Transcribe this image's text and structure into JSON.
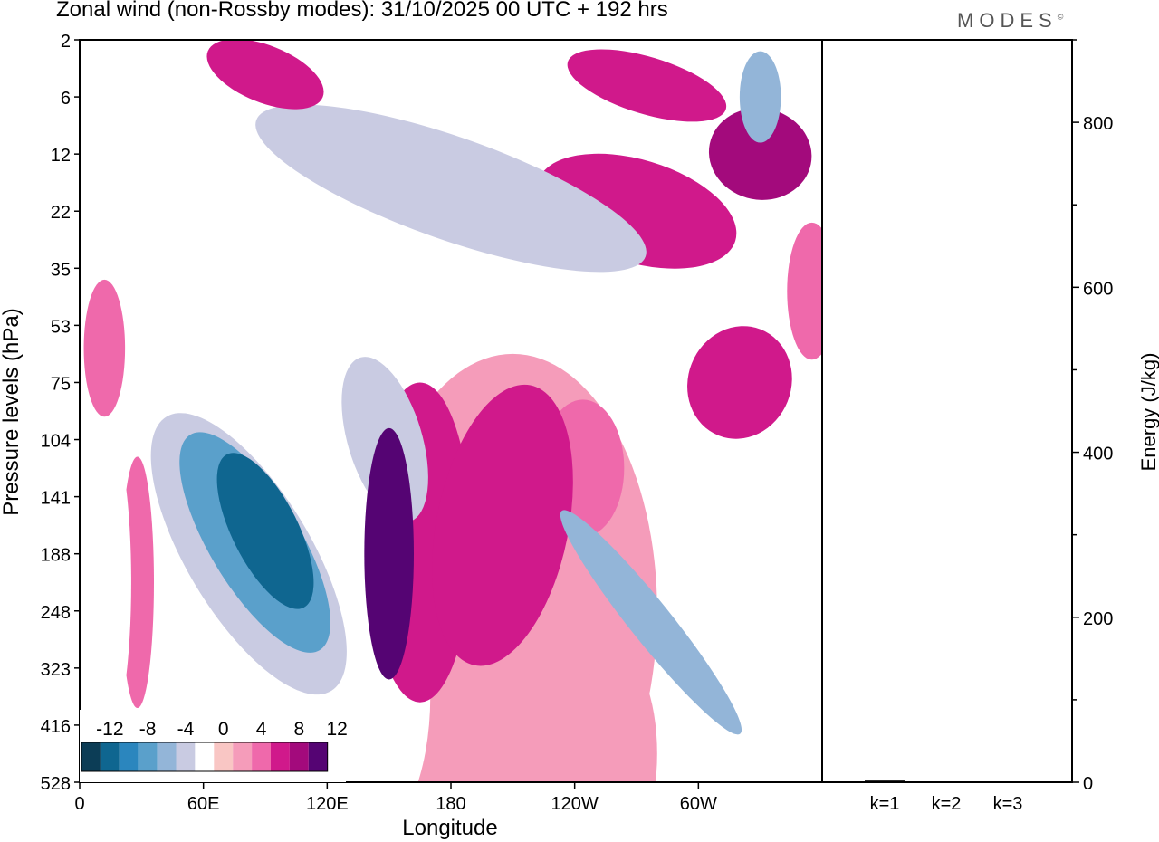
{
  "header": {
    "title": "Zonal wind (non-Rossby modes):  31/10/2025  00 UTC  + 192 hrs",
    "brand": "MODES",
    "brand_mark": "©"
  },
  "chart_data": [
    {
      "type": "heatmap",
      "title": "Zonal wind (non-Rossby modes):  31/10/2025  00 UTC  + 192 hrs",
      "xlabel": "Longitude",
      "ylabel": "Pressure levels (hPa)",
      "x_ticks": [
        "0",
        "60E",
        "120E",
        "180",
        "120W",
        "60W"
      ],
      "x_tick_degrees": [
        0,
        60,
        120,
        180,
        240,
        300
      ],
      "xlim": [
        0,
        360
      ],
      "y_ticks": [
        "2",
        "6",
        "12",
        "22",
        "35",
        "53",
        "75",
        "104",
        "141",
        "188",
        "248",
        "323",
        "416",
        "528"
      ],
      "colorbar": {
        "labels": [
          "-12",
          "-8",
          "-4",
          "0",
          "4",
          "8",
          "12"
        ],
        "levels": [
          -14,
          -12,
          -10,
          -8,
          -6,
          -4,
          -2,
          2,
          4,
          6,
          8,
          10,
          12,
          14
        ],
        "colors": [
          "#0c3d56",
          "#0f6690",
          "#2b86be",
          "#5aa0cb",
          "#93b5d8",
          "#c9cbe2",
          "#ffffff",
          "#f9c6c4",
          "#f59cba",
          "#ef69ab",
          "#d0198b",
          "#a30a7c",
          "#550473"
        ]
      },
      "regions": [
        {
          "name": "jet-neg-core",
          "lon": 90,
          "level": 8.6,
          "rx": 16,
          "ry": 1.5,
          "value": -14,
          "tilt": -0.5
        },
        {
          "name": "jet-neg-outer",
          "lon": 82,
          "level": 9.0,
          "rx": 30,
          "ry": 2.8,
          "value": -6,
          "tilt": -0.6
        },
        {
          "name": "jet-neg-mid",
          "lon": 85,
          "level": 8.8,
          "rx": 22,
          "ry": 2.2,
          "value": -10,
          "tilt": -0.6
        },
        {
          "name": "jet-neg-halo",
          "lon": 78,
          "level": 9.4,
          "rx": 38,
          "ry": 3.6,
          "value": -4,
          "tilt": -0.6
        },
        {
          "name": "pos-block-a",
          "lon": 150,
          "level": 9.0,
          "rx": 12,
          "ry": 2.2,
          "value": 10,
          "tilt": 0
        },
        {
          "name": "pos-block-b",
          "lon": 165,
          "level": 8.8,
          "rx": 25,
          "ry": 2.8,
          "value": 6,
          "tilt": 0
        },
        {
          "name": "pos-block-c",
          "lon": 205,
          "level": 8.5,
          "rx": 32,
          "ry": 2.5,
          "value": 6,
          "tilt": 0.2
        },
        {
          "name": "pos-broad",
          "lon": 210,
          "level": 10.0,
          "rx": 70,
          "ry": 4.5,
          "value": 2,
          "tilt": 0
        },
        {
          "name": "pos-upper-c",
          "lon": 244,
          "level": 7.5,
          "rx": 20,
          "ry": 1.2,
          "value": 4,
          "tilt": 0
        },
        {
          "name": "neg-mid-a",
          "lon": 148,
          "level": 7.0,
          "rx": 18,
          "ry": 1.5,
          "value": -6,
          "tilt": -0.3
        },
        {
          "name": "neg-250w",
          "lon": 277,
          "level": 10.2,
          "rx": 10,
          "ry": 2.5,
          "value": -8,
          "tilt": -0.8
        },
        {
          "name": "neg-east",
          "lon": 330,
          "level": 10.0,
          "rx": 25,
          "ry": 4.0,
          "value": -4,
          "tilt": 0
        },
        {
          "name": "neg-low",
          "lon": 140,
          "level": 11.5,
          "rx": 30,
          "ry": 2.5,
          "value": -4,
          "tilt": 0
        },
        {
          "name": "pos-east-mid",
          "lon": 320,
          "level": 6.0,
          "rx": 25,
          "ry": 1.0,
          "value": 6,
          "tilt": 0.4
        },
        {
          "name": "pos-far-east",
          "lon": 355,
          "level": 4.4,
          "rx": 12,
          "ry": 1.2,
          "value": 4,
          "tilt": 0
        },
        {
          "name": "pos-west-mid",
          "lon": 12,
          "level": 5.4,
          "rx": 10,
          "ry": 1.2,
          "value": 4,
          "tilt": 0
        },
        {
          "name": "pos-west-low",
          "lon": 28,
          "level": 9.5,
          "rx": 8,
          "ry": 2.2,
          "value": 4,
          "tilt": 0
        },
        {
          "name": "neg-west-low",
          "lon": 15,
          "level": 9.5,
          "rx": 10,
          "ry": 2.5,
          "value": -4,
          "tilt": 0
        },
        {
          "name": "pos-upper-jet",
          "lon": 270,
          "level": 3.0,
          "rx": 50,
          "ry": 0.9,
          "value": 6,
          "tilt": 0.3
        },
        {
          "name": "pos-upper-east",
          "lon": 330,
          "level": 2.0,
          "rx": 25,
          "ry": 0.8,
          "value": 8,
          "tilt": 0.2
        },
        {
          "name": "neg-upper-band",
          "lon": 180,
          "level": 2.6,
          "rx": 100,
          "ry": 0.9,
          "value": -6,
          "tilt": 0.35
        },
        {
          "name": "neg-upper-east",
          "lon": 330,
          "level": 1.0,
          "rx": 10,
          "ry": 0.8,
          "value": -8,
          "tilt": 0
        },
        {
          "name": "pos-upper-west",
          "lon": 90,
          "level": 0.6,
          "rx": 30,
          "ry": 0.5,
          "value": 6,
          "tilt": 0.4
        },
        {
          "name": "pos-upper-mid",
          "lon": 275,
          "level": 0.8,
          "rx": 40,
          "ry": 0.5,
          "value": 6,
          "tilt": 0.3
        },
        {
          "name": "neg-upper-west",
          "lon": 40,
          "level": 1.5,
          "rx": 35,
          "ry": 0.6,
          "value": -4,
          "tilt": 0.4
        },
        {
          "name": "pos-bottom",
          "lon": 260,
          "level": 12.5,
          "rx": 20,
          "ry": 1.8,
          "value": 2,
          "tilt": 0
        },
        {
          "name": "neg-bottom",
          "lon": 150,
          "level": 12.5,
          "rx": 10,
          "ry": 1.5,
          "value": -4,
          "tilt": 0
        }
      ]
    },
    {
      "type": "bar",
      "title": "",
      "xlabel": "",
      "ylabel": "Energy (J/kg)",
      "categories": [
        "k=1",
        "k=2",
        "k=3"
      ],
      "values": [
        2,
        1,
        1
      ],
      "ylim": [
        0,
        900
      ],
      "y_major_ticks": [
        "0",
        "200",
        "400",
        "600",
        "800"
      ],
      "y_major_values": [
        0,
        200,
        400,
        600,
        800
      ],
      "y_minor_step": 100
    }
  ]
}
